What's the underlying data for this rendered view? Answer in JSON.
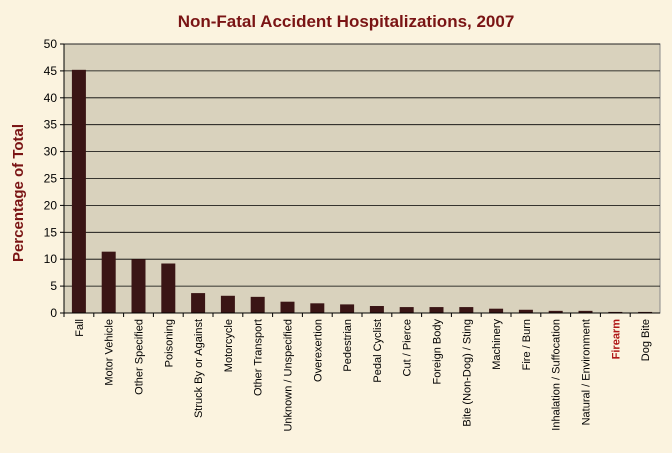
{
  "chart_data": {
    "type": "bar",
    "title": "Non-Fatal Accident Hospitalizations, 2007",
    "xlabel": "",
    "ylabel": "Percentage of Total",
    "ylim": [
      0,
      50
    ],
    "yticks": [
      0,
      5,
      10,
      15,
      20,
      25,
      30,
      35,
      40,
      45,
      50
    ],
    "grid": true,
    "legend": "none",
    "highlighted_category": "Firearm",
    "colors": {
      "bar": "#3a1515",
      "plot_background": "#d9d2bd",
      "page_background": "#fbf3df",
      "title": "#7a1414",
      "highlight_label": "#b01818"
    },
    "categories": [
      "Fall",
      "Motor Vehicle",
      "Other Specified",
      "Poisoning",
      "Struck By or Against",
      "Motorcycle",
      "Other Transport",
      "Unknown / Unspecified",
      "Overexertion",
      "Pedestrian",
      "Pedal Cyclist",
      "Cut / Pierce",
      "Foreign Body",
      "Bite (Non-Dog) / Sting",
      "Machinery",
      "Fire / Burn",
      "Inhalation / Suffocation",
      "Natural / Environment",
      "Firearm",
      "Dog Bite"
    ],
    "values": [
      45.2,
      11.4,
      10.0,
      9.2,
      3.7,
      3.2,
      3.0,
      2.1,
      1.8,
      1.6,
      1.3,
      1.1,
      1.1,
      1.1,
      0.8,
      0.6,
      0.4,
      0.4,
      0.2,
      0.2
    ]
  }
}
